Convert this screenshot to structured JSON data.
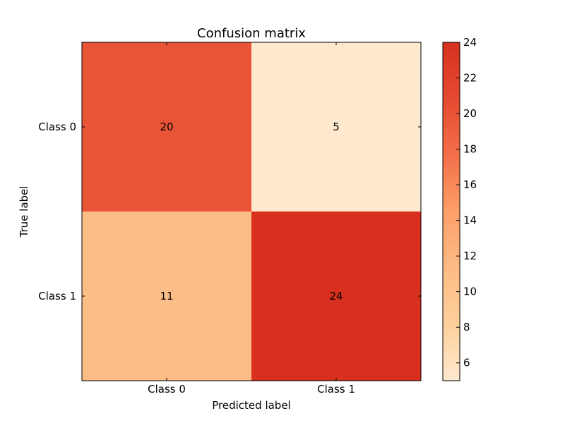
{
  "chart_data": {
    "type": "heatmap",
    "title": "Confusion matrix",
    "xlabel": "Predicted label",
    "ylabel": "True label",
    "x_categories": [
      "Class 0",
      "Class 1"
    ],
    "y_categories": [
      "Class 0",
      "Class 1"
    ],
    "values": [
      [
        20,
        5
      ],
      [
        11,
        24
      ]
    ],
    "colormap": "Oranges-like",
    "color_stops": [
      "#fee9cf",
      "#fdd09c",
      "#fdbb84",
      "#fc9f6a",
      "#f36f49",
      "#e54a30",
      "#d7301f"
    ],
    "colorbar": {
      "min": 5,
      "max": 24,
      "ticks": [
        "6",
        "8",
        "10",
        "12",
        "14",
        "16",
        "18",
        "20",
        "22",
        "24"
      ],
      "placement": "right"
    }
  }
}
